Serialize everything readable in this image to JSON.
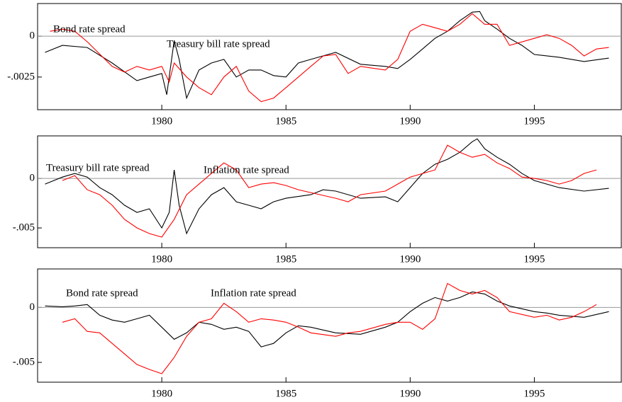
{
  "chart_data": [
    {
      "type": "line",
      "xlim": [
        1975,
        1998.5
      ],
      "xticks": [
        1980,
        1985,
        1990,
        1995
      ],
      "ylim": [
        -0.0045,
        0.002
      ],
      "yticks": [
        0,
        {
          "value": -0.0025,
          "label": "-.0025"
        }
      ],
      "zero_line": true,
      "annotations": [
        "Bond rate spread",
        "Treasury bill rate spread"
      ],
      "series": [
        {
          "color": "#000000",
          "x": [
            1975.3,
            1976,
            1977,
            1978,
            1979,
            1979.5,
            1980,
            1980.2,
            1980.5,
            1980.7,
            1981,
            1981.5,
            1982,
            1982.5,
            1983,
            1983.5,
            1984,
            1984.5,
            1985,
            1985.5,
            1986,
            1987,
            1988,
            1989,
            1989.5,
            1990,
            1990.5,
            1991,
            1991.5,
            1992,
            1992.5,
            1992.8,
            1993,
            1993.5,
            1994,
            1994.5,
            1995,
            1996,
            1997,
            1998
          ],
          "values": [
            -0.00099,
            -0.00056,
            -0.00069,
            -0.00164,
            -0.00272,
            -0.0025,
            -0.00228,
            -0.00358,
            -0.00026,
            -0.00142,
            -0.00379,
            -0.00207,
            -0.00164,
            -0.00142,
            -0.0025,
            -0.00207,
            -0.00207,
            -0.00241,
            -0.0025,
            -0.00164,
            -0.00142,
            -0.00099,
            -0.00172,
            -0.00185,
            -0.00198,
            -0.00142,
            -0.00078,
            -0.00013,
            0.0003,
            0.00095,
            0.00147,
            0.00151,
            0.00095,
            0.00043,
            -0.00013,
            -0.00056,
            -0.00112,
            -0.00129,
            -0.00155,
            -0.00134
          ]
        },
        {
          "color": "#ff0000",
          "x": [
            1975.5,
            1976,
            1976.5,
            1977,
            1978,
            1978.5,
            1979,
            1979.5,
            1980,
            1980.3,
            1980.5,
            1981,
            1981.5,
            1982,
            1982.5,
            1983,
            1983.5,
            1984,
            1984.5,
            1985,
            1985.5,
            1986,
            1986.5,
            1987,
            1987.5,
            1988,
            1989,
            1989.5,
            1990,
            1990.5,
            1991,
            1991.5,
            1992,
            1992.5,
            1993,
            1993.5,
            1994,
            1995,
            1995.5,
            1996,
            1996.5,
            1997,
            1997.5,
            1998
          ],
          "values": [
            0.0003,
            0.00043,
            0.0003,
            -0.00034,
            -0.00185,
            -0.0022,
            -0.00185,
            -0.00207,
            -0.00185,
            -0.0028,
            -0.00164,
            -0.0025,
            -0.00315,
            -0.00358,
            -0.0025,
            -0.00185,
            -0.00336,
            -0.00401,
            -0.00379,
            -0.00315,
            -0.0025,
            -0.00185,
            -0.00121,
            -0.00112,
            -0.00228,
            -0.00185,
            -0.00207,
            -0.00142,
            0.0003,
            0.00073,
            0.00052,
            0.0003,
            0.00073,
            0.00138,
            0.00073,
            0.00073,
            -0.00056,
            -0.00013,
            9e-05,
            -0.00013,
            -0.00056,
            -0.00121,
            -0.00078,
            -0.00069
          ]
        }
      ]
    },
    {
      "type": "line",
      "xlim": [
        1975,
        1998.5
      ],
      "xticks": [
        1980,
        1985,
        1990,
        1995
      ],
      "ylim": [
        -0.007,
        0.0043
      ],
      "yticks": [
        0,
        {
          "value": -0.005,
          "label": "-.005"
        }
      ],
      "zero_line": true,
      "annotations": [
        "Treasury bill rate spread",
        "Inflation rate spread"
      ],
      "series": [
        {
          "color": "#000000",
          "x": [
            1975.3,
            1976,
            1976.5,
            1977,
            1977.5,
            1978,
            1978.5,
            1979,
            1979.5,
            1980,
            1980.3,
            1980.5,
            1980.7,
            1981,
            1981.5,
            1982,
            1982.5,
            1983,
            1983.5,
            1984,
            1984.5,
            1985,
            1986,
            1986.5,
            1987,
            1988,
            1989,
            1989.5,
            1990,
            1990.5,
            1991,
            1991.5,
            1992,
            1992.5,
            1992.7,
            1993,
            1993.5,
            1994,
            1994.5,
            1995,
            1996,
            1997,
            1998
          ],
          "values": [
            -0.00057,
            0.00014,
            0.0005,
            0.00014,
            -0.00093,
            -0.00164,
            -0.00271,
            -0.00343,
            -0.00307,
            -0.005,
            -0.00343,
            0.00086,
            -0.00271,
            -0.00557,
            -0.00307,
            -0.00164,
            -0.00093,
            -0.00236,
            -0.00271,
            -0.00307,
            -0.00236,
            -0.002,
            -0.00164,
            -0.00114,
            -0.00128,
            -0.002,
            -0.00186,
            -0.00236,
            -0.00093,
            0.0005,
            0.00143,
            0.00193,
            0.00264,
            0.00371,
            0.004,
            0.003,
            0.00214,
            0.00143,
            0.0005,
            -0.00021,
            -0.00093,
            -0.00128,
            -0.001
          ]
        },
        {
          "color": "#ff0000",
          "x": [
            1976,
            1976.5,
            1977,
            1977.5,
            1978,
            1978.5,
            1979,
            1979.5,
            1980,
            1980.5,
            1981,
            1981.5,
            1982,
            1982.5,
            1983,
            1983.5,
            1984,
            1984.5,
            1985,
            1985.5,
            1986,
            1987,
            1987.5,
            1988,
            1989,
            1989.5,
            1990,
            1991,
            1991.5,
            1992,
            1992.5,
            1993,
            1993.5,
            1994,
            1994.5,
            1995,
            1995.5,
            1996,
            1996.5,
            1997,
            1997.5
          ],
          "values": [
            -0.00021,
            0.00029,
            -0.00114,
            -0.00164,
            -0.00271,
            -0.00414,
            -0.005,
            -0.00557,
            -0.00593,
            -0.00414,
            -0.00164,
            -0.00057,
            0.0005,
            0.00157,
            0.00086,
            -0.00093,
            -0.00057,
            -0.00043,
            -0.00071,
            -0.00114,
            -0.00143,
            -0.002,
            -0.00236,
            -0.00164,
            -0.00128,
            -0.00057,
            0.00014,
            0.00086,
            0.00336,
            0.00264,
            0.00214,
            0.00243,
            0.00157,
            0.001,
            0.00014,
            0,
            -0.00021,
            -0.00057,
            -0.00021,
            0.0005,
            0.00086
          ]
        }
      ]
    },
    {
      "type": "line",
      "xlim": [
        1975,
        1998.5
      ],
      "xticks": [
        1980,
        1985,
        1990,
        1995
      ],
      "ylim": [
        -0.0068,
        0.0035
      ],
      "yticks": [
        0,
        {
          "value": -0.005,
          "label": "-.005"
        }
      ],
      "zero_line": true,
      "annotations": [
        "Bond rate spread",
        "Inflation rate spread"
      ],
      "series": [
        {
          "color": "#000000",
          "x": [
            1975.3,
            1976,
            1976.5,
            1977,
            1977.5,
            1978,
            1978.5,
            1979,
            1979.5,
            1980,
            1980.5,
            1981,
            1981.5,
            1982,
            1982.5,
            1983,
            1983.5,
            1984,
            1984.5,
            1985,
            1985.5,
            1986,
            1987,
            1988,
            1989,
            1989.5,
            1990,
            1990.5,
            1991,
            1991.5,
            1992,
            1992.5,
            1993,
            1993.5,
            1994,
            1995,
            1995.5,
            1996,
            1997,
            1998
          ],
          "values": [
            0.00013,
            6e-05,
            0.00013,
            0.00026,
            -0.00071,
            -0.00115,
            -0.00135,
            -0.00103,
            -0.00071,
            -0.0018,
            -0.0029,
            -0.00231,
            -0.00135,
            -0.00154,
            -0.00199,
            -0.0018,
            -0.00218,
            -0.00359,
            -0.00327,
            -0.00231,
            -0.00167,
            -0.0018,
            -0.00231,
            -0.00244,
            -0.0018,
            -0.00135,
            -0.00038,
            0.00038,
            0.0009,
            0.00058,
            0.0009,
            0.00141,
            0.00122,
            0.00058,
            0.00013,
            -0.00038,
            -0.00051,
            -0.00071,
            -0.0009,
            -0.00038
          ]
        },
        {
          "color": "#ff0000",
          "x": [
            1976,
            1976.5,
            1977,
            1977.5,
            1978,
            1978.5,
            1979,
            1979.5,
            1980,
            1980.5,
            1981,
            1981.5,
            1982,
            1982.5,
            1983,
            1983.5,
            1984,
            1984.5,
            1985,
            1985.5,
            1986,
            1987,
            1987.5,
            1988,
            1989,
            1989.5,
            1990,
            1990.5,
            1991,
            1991.5,
            1992,
            1992.5,
            1993,
            1993.5,
            1994,
            1995,
            1995.5,
            1996,
            1996.5,
            1997,
            1997.5
          ],
          "values": [
            -0.00135,
            -0.00103,
            -0.00218,
            -0.00231,
            -0.00327,
            -0.00423,
            -0.00519,
            -0.00564,
            -0.00603,
            -0.00455,
            -0.00263,
            -0.00135,
            -0.00103,
            0.00038,
            -0.00038,
            -0.00135,
            -0.00103,
            -0.00115,
            -0.00135,
            -0.0018,
            -0.00231,
            -0.00263,
            -0.00231,
            -0.00218,
            -0.00154,
            -0.00135,
            -0.00135,
            -0.00199,
            -0.00103,
            0.00218,
            0.00154,
            0.00122,
            0.00154,
            0.0009,
            -0.00038,
            -0.0009,
            -0.00071,
            -0.00115,
            -0.0009,
            -0.00038,
            0.00026
          ]
        }
      ]
    }
  ]
}
